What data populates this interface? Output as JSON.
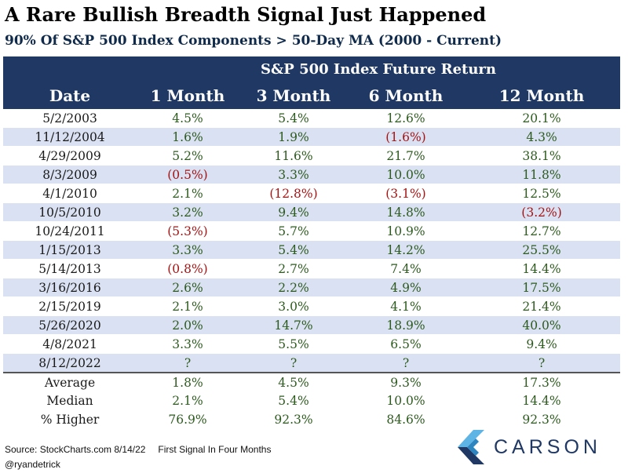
{
  "title": "A Rare Bullish Breadth Signal Just Happened",
  "subtitle": "90% Of S&P 500 Index Components > 50-Day MA (2000 - Current)",
  "table": {
    "group_header": "S&P 500 Index Future Return",
    "columns": [
      "Date",
      "1 Month",
      "3 Month",
      "6 Month",
      "12 Month"
    ],
    "rows": [
      [
        "5/2/2003",
        "4.5%",
        "5.4%",
        "12.6%",
        "20.1%"
      ],
      [
        "11/12/2004",
        "1.6%",
        "1.9%",
        "(1.6%)",
        "4.3%"
      ],
      [
        "4/29/2009",
        "5.2%",
        "11.6%",
        "21.7%",
        "38.1%"
      ],
      [
        "8/3/2009",
        "(0.5%)",
        "3.3%",
        "10.0%",
        "11.8%"
      ],
      [
        "4/1/2010",
        "2.1%",
        "(12.8%)",
        "(3.1%)",
        "12.5%"
      ],
      [
        "10/5/2010",
        "3.2%",
        "9.4%",
        "14.8%",
        "(3.2%)"
      ],
      [
        "10/24/2011",
        "(5.3%)",
        "5.7%",
        "10.9%",
        "12.7%"
      ],
      [
        "1/15/2013",
        "3.3%",
        "5.4%",
        "14.2%",
        "25.5%"
      ],
      [
        "5/14/2013",
        "(0.8%)",
        "2.7%",
        "7.4%",
        "14.4%"
      ],
      [
        "3/16/2016",
        "2.6%",
        "2.2%",
        "4.9%",
        "17.5%"
      ],
      [
        "2/15/2019",
        "2.1%",
        "3.0%",
        "4.1%",
        "21.4%"
      ],
      [
        "5/26/2020",
        "2.0%",
        "14.7%",
        "18.9%",
        "40.0%"
      ],
      [
        "4/8/2021",
        "3.3%",
        "5.5%",
        "6.5%",
        "9.4%"
      ],
      [
        "8/12/2022",
        "?",
        "?",
        "?",
        "?"
      ]
    ],
    "summary": [
      [
        "Average",
        "1.8%",
        "4.5%",
        "9.3%",
        "17.3%"
      ],
      [
        "Median",
        "2.1%",
        "5.4%",
        "10.0%",
        "14.4%"
      ],
      [
        "% Higher",
        "76.9%",
        "92.3%",
        "84.6%",
        "92.3%"
      ]
    ]
  },
  "footer": {
    "source": "Source: StockCharts.com 8/14/22",
    "note": "First Signal In Four Months",
    "handle": "@ryandetrick"
  },
  "logo": {
    "text": "CARSON",
    "icon": "carson-logo-icon"
  },
  "colors": {
    "header_bg": "#1f3864",
    "stripe": "#d9e1f2",
    "positive_text": "#2d5a1e",
    "negative_text": "#a31515",
    "logo_light": "#5fb4e6",
    "logo_mid": "#2e86c1",
    "logo_dark": "#1f3864"
  }
}
